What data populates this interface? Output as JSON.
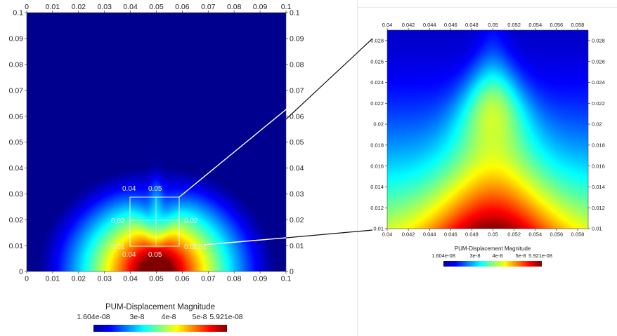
{
  "colormap_stops": [
    "#00008f",
    "#0000ff",
    "#0080ff",
    "#00ffff",
    "#80ff80",
    "#ffff00",
    "#ff8000",
    "#ff0000",
    "#800000"
  ],
  "chart_data": [
    {
      "type": "heatmap",
      "field": "PUM-Displacement Magnitude",
      "xlim": [
        0,
        0.1
      ],
      "ylim": [
        0,
        0.1
      ],
      "x_ticks": [
        "0",
        "0.01",
        "0.02",
        "0.03",
        "0.04",
        "0.05",
        "0.06",
        "0.07",
        "0.08",
        "0.09",
        "0.1"
      ],
      "y_ticks": [
        "0",
        "0.01",
        "0.02",
        "0.03",
        "0.04",
        "0.05",
        "0.06",
        "0.07",
        "0.08",
        "0.09",
        "0.1"
      ],
      "value_range": [
        1.604e-08,
        5.921e-08
      ],
      "inset_box": {
        "x": [
          0.04,
          0.059
        ],
        "y": [
          0.01,
          0.029
        ],
        "labels": [
          "0.04",
          "0.05",
          "0.02",
          "0.02",
          "0.01",
          "0.01",
          "0.04",
          "0.05",
          "0.01"
        ]
      },
      "colorbar": {
        "title": "PUM-Displacement Magnitude",
        "tick_labels": [
          "1.604e-08",
          "3e-8",
          "4e-8",
          "5e-8",
          "5.921e-08"
        ]
      }
    },
    {
      "type": "heatmap",
      "field": "PUM-Displacement Magnitude",
      "xlim": [
        0.04,
        0.059
      ],
      "ylim": [
        0.01,
        0.029
      ],
      "x_ticks": [
        "0.04",
        "0.042",
        "0.044",
        "0.046",
        "0.048",
        "0.05",
        "0.052",
        "0.054",
        "0.056",
        "0.058"
      ],
      "y_ticks": [
        "0.01",
        "0.012",
        "0.014",
        "0.016",
        "0.018",
        "0.02",
        "0.022",
        "0.024",
        "0.026",
        "0.028"
      ],
      "value_range": [
        1.604e-08,
        5.921e-08
      ],
      "colorbar": {
        "title": "PUM-Displacement Magnitude",
        "tick_labels": [
          "1.604e-08",
          "3e-8",
          "4e-8",
          "5e-8",
          "5.921e-08"
        ]
      }
    }
  ]
}
